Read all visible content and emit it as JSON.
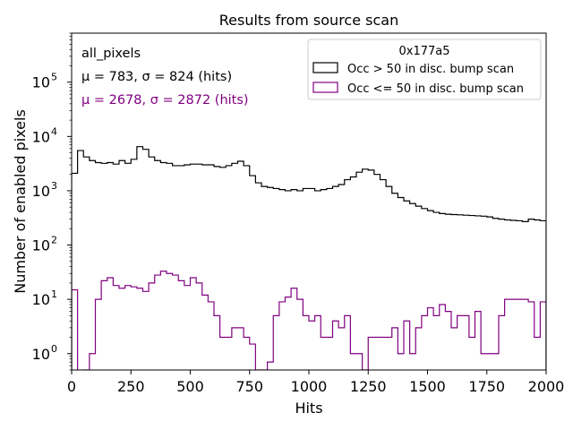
{
  "chart_data": {
    "type": "histogram",
    "title": "Results from source scan",
    "xlabel": "Hits",
    "ylabel": "Number of enabled pixels",
    "xlim": [
      0,
      2000
    ],
    "ylim": [
      0.5,
      800000
    ],
    "yscale": "log",
    "bin_width": 25,
    "x_ticks": [
      0,
      250,
      500,
      750,
      1000,
      1250,
      1500,
      1750,
      2000
    ],
    "y_ticks": [
      {
        "value": 1,
        "label": "10^0",
        "exp": "0"
      },
      {
        "value": 10,
        "label": "10^1",
        "exp": "1"
      },
      {
        "value": 100,
        "label": "10^2",
        "exp": "2"
      },
      {
        "value": 1000,
        "label": "10^3",
        "exp": "3"
      },
      {
        "value": 10000,
        "label": "10^4",
        "exp": "4"
      },
      {
        "value": 100000,
        "label": "10^5",
        "exp": "5"
      }
    ],
    "annotations": [
      {
        "text": "all_pixels",
        "color": "#000000"
      },
      {
        "text": "μ = 783, σ = 824 (hits)",
        "color": "#000000"
      },
      {
        "text": "μ = 2678, σ = 2872 (hits)",
        "color": "#800080"
      }
    ],
    "legend": {
      "title": "0x177a5",
      "position": "top-right"
    },
    "series": [
      {
        "name": "Occ > 50 in disc. bump scan",
        "color": "#000000",
        "values": [
          2100,
          5500,
          4200,
          3600,
          3300,
          3200,
          3300,
          3100,
          3600,
          3200,
          3800,
          6500,
          5800,
          4200,
          3600,
          3300,
          3200,
          2900,
          2900,
          3000,
          3100,
          3100,
          3000,
          3000,
          2800,
          2700,
          2900,
          3200,
          3500,
          2900,
          1900,
          1400,
          1200,
          1150,
          1100,
          1050,
          1000,
          1050,
          1000,
          1100,
          1100,
          1000,
          1050,
          1100,
          1200,
          1300,
          1600,
          1800,
          2200,
          2500,
          2400,
          2000,
          1600,
          1200,
          900,
          750,
          650,
          580,
          520,
          470,
          430,
          400,
          380,
          370,
          365,
          360,
          355,
          350,
          345,
          340,
          330,
          310,
          300,
          290,
          285,
          280,
          270,
          300,
          290,
          280
        ]
      },
      {
        "name": "Occ <= 50 in disc. bump scan",
        "color": "#800080",
        "values": [
          15,
          0,
          0.5,
          1,
          10,
          22,
          25,
          18,
          16,
          18,
          17,
          16,
          14,
          20,
          28,
          33,
          30,
          28,
          22,
          18,
          25,
          20,
          12,
          9,
          5,
          2,
          2,
          3,
          3,
          2,
          1.5,
          0.5,
          0.5,
          0.7,
          5,
          9,
          11,
          16,
          10,
          5,
          4,
          5,
          2,
          2,
          4,
          3,
          5,
          1,
          1,
          0.5,
          2,
          2,
          2,
          2,
          3,
          1,
          4,
          1,
          3,
          5,
          7,
          5,
          8,
          6,
          3,
          5,
          5,
          2,
          6,
          1,
          1,
          1,
          5,
          10,
          10,
          10,
          10,
          9,
          2,
          9
        ]
      }
    ]
  }
}
